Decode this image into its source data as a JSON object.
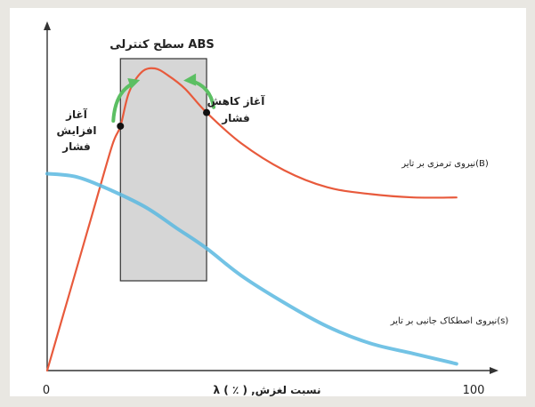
{
  "chart_data": {
    "type": "line",
    "xlim": [
      0,
      100
    ],
    "ylim": [
      0,
      100
    ],
    "x_ticks": [
      "0",
      "100"
    ],
    "xlabel": "λ ( ٪ ) ,نسبت لغزش",
    "shaded_region_label": "سطح کنترلی ABS",
    "shaded_region_x": [
      17,
      37
    ],
    "annotations": [
      {
        "text_lines": [
          "آغاز",
          "افزایش",
          "فشار"
        ],
        "x": 17,
        "y": 72
      },
      {
        "text_lines": [
          "آغاز کاهش",
          "فشار"
        ],
        "x": 37,
        "y": 76
      }
    ],
    "series": [
      {
        "name": "نیروی ترمزی بر تایر(B)",
        "color": "#e85a3c",
        "x": [
          0,
          5,
          10,
          15,
          17,
          19,
          22,
          25,
          28,
          32,
          37,
          45,
          55,
          65,
          75,
          85,
          95
        ],
        "y": [
          0,
          22,
          44,
          66,
          72,
          82,
          88,
          89,
          87,
          83,
          76,
          67,
          59,
          54,
          52,
          51,
          51
        ]
      },
      {
        "name": "نیروی اصطکاک جانبی بر تایر(s)",
        "color": "#5ab8e0",
        "x": [
          0,
          7,
          15,
          23,
          30,
          37,
          45,
          55,
          65,
          75,
          85,
          95
        ],
        "y": [
          58,
          57,
          53,
          48,
          42,
          36,
          28,
          20,
          13,
          8,
          5,
          2
        ]
      }
    ],
    "grid": false,
    "legend": "inline labels"
  }
}
